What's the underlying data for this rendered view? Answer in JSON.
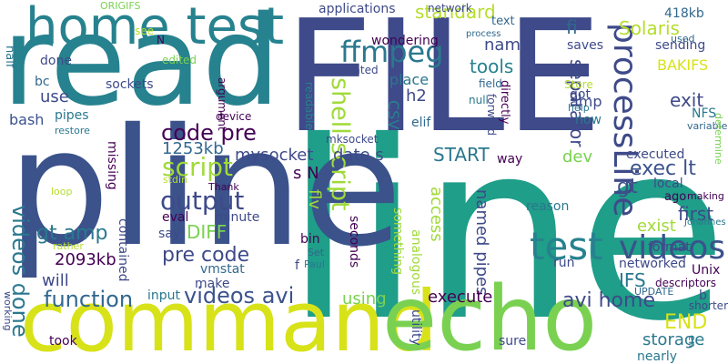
{
  "words": [
    {
      "text": "line",
      "color": "#1f9e89"
    },
    {
      "text": "pline",
      "color": "#3b528b"
    },
    {
      "text": "read",
      "color": "#26828e"
    },
    {
      "text": "FILE",
      "color": "#3e4a89"
    },
    {
      "text": "command",
      "color": "#d8e219"
    },
    {
      "text": "echo",
      "color": "#7ad151"
    },
    {
      "text": "home test",
      "color": "#26828e"
    },
    {
      "text": "test",
      "color": "#26828e"
    },
    {
      "text": "videos",
      "color": "#3b528b"
    },
    {
      "text": "processLine",
      "color": "#3e4a89"
    },
    {
      "text": "ffmpeg",
      "color": "#2a788e"
    },
    {
      "text": "script",
      "color": "#a0da39"
    },
    {
      "text": "shell script",
      "color": "#a0da39"
    },
    {
      "text": "output",
      "color": "#3e4a89"
    },
    {
      "text": "videos avi",
      "color": "#3b528b"
    },
    {
      "text": "videos done",
      "color": "#2a788e"
    },
    {
      "text": "function",
      "color": "#31688e"
    },
    {
      "text": "code pre",
      "color": "#440154"
    },
    {
      "text": "pre code",
      "color": "#3e4a89"
    },
    {
      "text": "gt amp",
      "color": "#2a788e"
    },
    {
      "text": "exec lt",
      "color": "#3b528b"
    },
    {
      "text": "gt",
      "color": "#3b528b"
    },
    {
      "text": "avi home",
      "color": "#3e4a89"
    },
    {
      "text": "END",
      "color": "#d8e219"
    },
    {
      "text": "DIFF",
      "color": "#7ad151"
    },
    {
      "text": "standard",
      "color": "#b5de2b"
    },
    {
      "text": "tools",
      "color": "#26828e"
    },
    {
      "text": "name",
      "color": "#3e4a89"
    },
    {
      "text": "fi",
      "color": "#31688e"
    },
    {
      "text": "Solaris",
      "color": "#b5de2b"
    },
    {
      "text": "BAKIFS",
      "color": "#d8e219"
    },
    {
      "text": "418kb",
      "color": "#31688e"
    },
    {
      "text": "separator",
      "color": "#3e4a89"
    },
    {
      "text": "exit",
      "color": "#3e4a89"
    },
    {
      "text": "first",
      "color": "#3e4a89"
    },
    {
      "text": "exist",
      "color": "#a0da39"
    },
    {
      "text": "IFS",
      "color": "#2a788e"
    },
    {
      "text": "1253kb",
      "color": "#31688e"
    },
    {
      "text": "2093kb",
      "color": "#440154"
    },
    {
      "text": "mysocket",
      "color": "#3e4a89"
    },
    {
      "text": "START",
      "color": "#2a788e"
    },
    {
      "text": "date s",
      "color": "#3e4a89"
    },
    {
      "text": "s N",
      "color": "#440154"
    },
    {
      "text": "flv",
      "color": "#a0da39"
    },
    {
      "text": "access",
      "color": "#a0da39"
    },
    {
      "text": "named pipes",
      "color": "#3e4a89"
    },
    {
      "text": "execute",
      "color": "#440154"
    },
    {
      "text": "using",
      "color": "#7ad151"
    },
    {
      "text": "storage",
      "color": "#2a788e"
    },
    {
      "text": "CSV",
      "color": "#26828e"
    },
    {
      "text": "h2",
      "color": "#3e4a89"
    },
    {
      "text": "elif",
      "color": "#31688e"
    },
    {
      "text": "place",
      "color": "#2a788e"
    },
    {
      "text": "wondering",
      "color": "#440154"
    },
    {
      "text": "amp",
      "color": "#3e4a89"
    },
    {
      "text": "dev",
      "color": "#7ad151"
    },
    {
      "text": "will",
      "color": "#3e4a89"
    },
    {
      "text": "use",
      "color": "#3e4a89"
    },
    {
      "text": "bash",
      "color": "#3b528b"
    },
    {
      "text": "pipes",
      "color": "#2a788e"
    },
    {
      "text": "sockets",
      "color": "#3e4a89"
    },
    {
      "text": "done",
      "color": "#3e4a89"
    },
    {
      "text": "bc",
      "color": "#31688e"
    },
    {
      "text": "half",
      "color": "#2a788e"
    },
    {
      "text": "ORIGIFS",
      "color": "#7ad151"
    },
    {
      "text": "see",
      "color": "#b5de2b"
    },
    {
      "text": "N",
      "color": "#440154"
    },
    {
      "text": "edited",
      "color": "#7ad151"
    },
    {
      "text": "argument",
      "color": "#440154"
    },
    {
      "text": "device",
      "color": "#440154"
    },
    {
      "text": "readable",
      "color": "#26828e"
    },
    {
      "text": "mksocket",
      "color": "#3e4a89"
    },
    {
      "text": "applications",
      "color": "#3e4a89"
    },
    {
      "text": "network",
      "color": "#3e4a89"
    },
    {
      "text": "text",
      "color": "#31688e"
    },
    {
      "text": "process",
      "color": "#31688e"
    },
    {
      "text": "field",
      "color": "#31688e"
    },
    {
      "text": "null",
      "color": "#2a788e"
    },
    {
      "text": "forward",
      "color": "#3e4a89"
    },
    {
      "text": "directly",
      "color": "#440154"
    },
    {
      "text": "pointed",
      "color": "#3e4a89"
    },
    {
      "text": "Store",
      "color": "#b5de2b"
    },
    {
      "text": "got",
      "color": "#3e4a89"
    },
    {
      "text": "now",
      "color": "#2a788e"
    },
    {
      "text": "help",
      "color": "#2a788e"
    },
    {
      "text": "saves",
      "color": "#3e4a89"
    },
    {
      "text": "sending",
      "color": "#3e4a89"
    },
    {
      "text": "used",
      "color": "#31688e"
    },
    {
      "text": "NFS",
      "color": "#2a788e"
    },
    {
      "text": "variable",
      "color": "#31688e"
    },
    {
      "text": "determine",
      "color": "#7ad151"
    },
    {
      "text": "restore",
      "color": "#2a788e"
    },
    {
      "text": "missing",
      "color": "#440154"
    },
    {
      "text": "contained",
      "color": "#3e4a89"
    },
    {
      "text": "stdin",
      "color": "#b5de2b"
    },
    {
      "text": "Thank",
      "color": "#440154"
    },
    {
      "text": "eval",
      "color": "#440154"
    },
    {
      "text": "minute",
      "color": "#3e4a89"
    },
    {
      "text": "say",
      "color": "#3e4a89"
    },
    {
      "text": "vmstat",
      "color": "#31688e"
    },
    {
      "text": "make",
      "color": "#3e4a89"
    },
    {
      "text": "input",
      "color": "#2a788e"
    },
    {
      "text": "took",
      "color": "#440154"
    },
    {
      "text": "bin",
      "color": "#440154"
    },
    {
      "text": "f",
      "color": "#3e4a89"
    },
    {
      "text": "Paul",
      "color": "#2a788e"
    },
    {
      "text": "Set",
      "color": "#31688e"
    },
    {
      "text": "seconds",
      "color": "#440154"
    },
    {
      "text": "something",
      "color": "#a0da39"
    },
    {
      "text": "analogous",
      "color": "#a0da39"
    },
    {
      "text": "utility",
      "color": "#3e4a89"
    },
    {
      "text": "reason",
      "color": "#2a788e"
    },
    {
      "text": "way",
      "color": "#440154"
    },
    {
      "text": "run",
      "color": "#3e4a89"
    },
    {
      "text": "networked",
      "color": "#3e4a89"
    },
    {
      "text": "executed",
      "color": "#3e4a89"
    },
    {
      "text": "local",
      "color": "#3e4a89"
    },
    {
      "text": "ago",
      "color": "#440154"
    },
    {
      "text": "making",
      "color": "#440154"
    },
    {
      "text": "format",
      "color": "#3e4a89"
    },
    {
      "text": "Johannes",
      "color": "#2a788e"
    },
    {
      "text": "Unix",
      "color": "#440154"
    },
    {
      "text": "descriptors",
      "color": "#440154"
    },
    {
      "text": "UPDATE",
      "color": "#31688e"
    },
    {
      "text": "b",
      "color": "#3e4a89"
    },
    {
      "text": "shorter",
      "color": "#3e4a89"
    },
    {
      "text": "en",
      "color": "#2a788e"
    },
    {
      "text": "nearly",
      "color": "#2a788e"
    },
    {
      "text": "sure",
      "color": "#3e4a89"
    },
    {
      "text": "loop",
      "color": "#b5de2b"
    },
    {
      "text": "working",
      "color": "#3e4a89"
    },
    {
      "text": "rather",
      "color": "#b5de2b"
    }
  ]
}
